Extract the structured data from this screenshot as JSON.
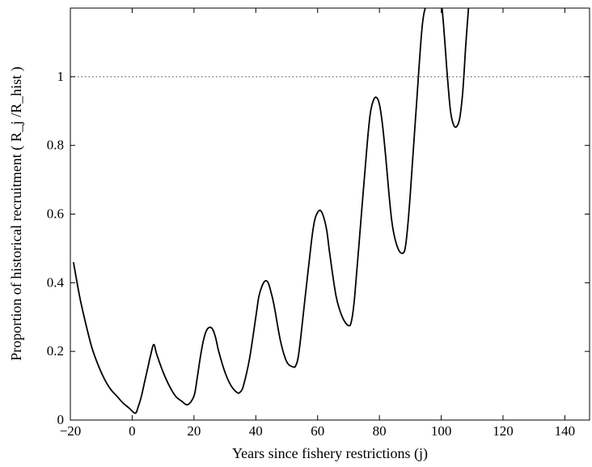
{
  "chart_data": {
    "type": "line",
    "title": "",
    "xlabel": "Years since fishery restrictions (j)",
    "ylabel": "Proportion of historical recruitment ( R_j /R_hist )",
    "xlim": [
      -20,
      148
    ],
    "ylim": [
      0,
      1.2
    ],
    "x_ticks": [
      -20,
      0,
      20,
      40,
      60,
      80,
      100,
      120,
      140
    ],
    "y_ticks": [
      0,
      0.2,
      0.4,
      0.6,
      0.8,
      1
    ],
    "grid": false,
    "reference_line": {
      "y": 1,
      "style": "dotted"
    },
    "series": [
      {
        "x": [
          -19,
          -17,
          -15,
          -13,
          -11,
          -9,
          -7,
          -5,
          -3,
          -1,
          1,
          2,
          3,
          4,
          5,
          6,
          7,
          8,
          10,
          12,
          14,
          16,
          18,
          20,
          21,
          22,
          23,
          24,
          25,
          26,
          27,
          28,
          30,
          32,
          34,
          35,
          36,
          38,
          40,
          41,
          42,
          43,
          44,
          45,
          46,
          48,
          50,
          52,
          53,
          54,
          56,
          58,
          59,
          60,
          61,
          62,
          63,
          64,
          66,
          68,
          70,
          71,
          72,
          74,
          76,
          77,
          78,
          79,
          80,
          81,
          82,
          84,
          86,
          88,
          89,
          90,
          92,
          94,
          96,
          98,
          100,
          102,
          103,
          104,
          105,
          106,
          107,
          108,
          109
        ],
        "values": [
          0.46,
          0.36,
          0.28,
          0.21,
          0.16,
          0.12,
          0.09,
          0.07,
          0.05,
          0.035,
          0.02,
          0.04,
          0.07,
          0.11,
          0.15,
          0.19,
          0.22,
          0.19,
          0.14,
          0.1,
          0.07,
          0.055,
          0.045,
          0.07,
          0.12,
          0.18,
          0.23,
          0.26,
          0.27,
          0.265,
          0.24,
          0.2,
          0.14,
          0.1,
          0.08,
          0.082,
          0.1,
          0.18,
          0.3,
          0.36,
          0.39,
          0.405,
          0.4,
          0.37,
          0.33,
          0.23,
          0.17,
          0.155,
          0.16,
          0.2,
          0.36,
          0.52,
          0.58,
          0.605,
          0.61,
          0.59,
          0.55,
          0.48,
          0.36,
          0.3,
          0.275,
          0.29,
          0.36,
          0.58,
          0.8,
          0.89,
          0.93,
          0.94,
          0.92,
          0.86,
          0.77,
          0.58,
          0.5,
          0.49,
          0.55,
          0.66,
          0.92,
          1.16,
          1.22,
          1.24,
          1.22,
          1.0,
          0.9,
          0.86,
          0.855,
          0.88,
          0.96,
          1.1,
          1.22
        ]
      }
    ]
  }
}
